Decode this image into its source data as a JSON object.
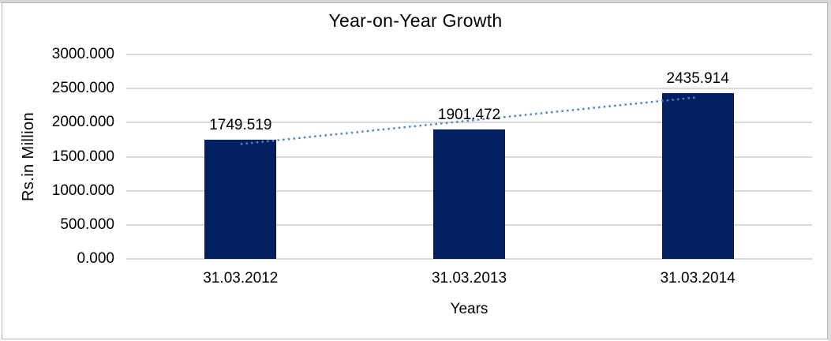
{
  "chart_data": {
    "type": "bar",
    "title": "Year-on-Year Growth",
    "xlabel": "Years",
    "ylabel": "Rs.in Million",
    "categories": [
      "31.03.2012",
      "31.03.2013",
      "31.03.2014"
    ],
    "series": [
      {
        "type": "bar",
        "values": [
          1749.519,
          1901.472,
          2435.914
        ],
        "color": "#002060"
      },
      {
        "type": "line",
        "style": "dotted",
        "fit": "linear",
        "color": "#4a86c8"
      }
    ],
    "data_labels": [
      "1749.519",
      "1901.472",
      "2435.914"
    ],
    "ytick_labels": [
      "0.000",
      "500.000",
      "1000.000",
      "1500.000",
      "2000.000",
      "2500.000",
      "3000.000"
    ],
    "ylim": [
      0,
      3000
    ],
    "grid": true,
    "legend": "none",
    "colors": {
      "bar": "#002060",
      "trendline": "#4a86c8",
      "gridline": "#d9d9d9",
      "text": "#000000",
      "background": "#ffffff",
      "frame_border": "#b5b5b5",
      "frame_strip": "#d6d6d6"
    }
  }
}
